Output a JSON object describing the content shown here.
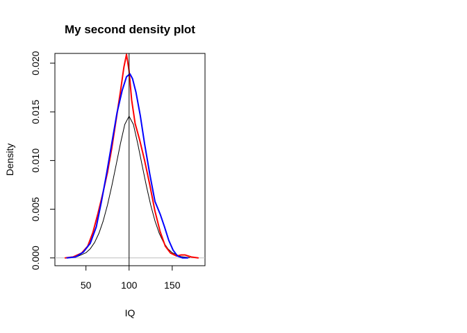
{
  "chart_data": {
    "type": "line",
    "title": "My second density plot",
    "xlabel": "IQ",
    "ylabel": "Density",
    "xlim": [
      14,
      188
    ],
    "ylim": [
      -0.0008,
      0.021
    ],
    "xticks": [
      50,
      100,
      150
    ],
    "xtick_labels": [
      "50",
      "100",
      "150"
    ],
    "yticks": [
      0.0,
      0.005,
      0.01,
      0.015,
      0.02
    ],
    "ytick_labels": [
      "0.000",
      "0.005",
      "0.010",
      "0.015",
      "0.020"
    ],
    "reference_lines": {
      "vertical_x": 100,
      "horizontal_y": 0
    },
    "grid": false,
    "legend": "none",
    "series": [
      {
        "color": "#000000",
        "x": [
          30,
          40,
          50,
          55,
          60,
          65,
          70,
          75,
          80,
          85,
          90,
          95,
          100,
          105,
          110,
          115,
          120,
          125,
          130,
          135,
          140,
          145,
          150,
          160,
          170
        ],
        "y": [
          3e-05,
          0.00014,
          0.00053,
          0.00094,
          0.00158,
          0.00252,
          0.0038,
          0.00545,
          0.00741,
          0.00956,
          0.01175,
          0.01371,
          0.01455,
          0.01371,
          0.01175,
          0.00956,
          0.00741,
          0.00545,
          0.0038,
          0.00252,
          0.00158,
          0.00094,
          0.00053,
          0.00014,
          3e-05
        ]
      },
      {
        "color": "#ff0000",
        "x": [
          26,
          35,
          45,
          52,
          58,
          64,
          70,
          75,
          80,
          85,
          90,
          94,
          97,
          100,
          103,
          107,
          112,
          118,
          124,
          130,
          136,
          142,
          148,
          155,
          160,
          165,
          172,
          180
        ],
        "y": [
          0.0,
          0.0001,
          0.0005,
          0.0012,
          0.0026,
          0.0046,
          0.0068,
          0.0088,
          0.0113,
          0.0142,
          0.0171,
          0.0196,
          0.0209,
          0.0192,
          0.0162,
          0.0138,
          0.0122,
          0.01,
          0.0075,
          0.0048,
          0.0027,
          0.0012,
          0.0005,
          0.0002,
          0.0003,
          0.0003,
          0.0001,
          0.0
        ]
      },
      {
        "color": "#0000ff",
        "x": [
          28,
          38,
          47,
          55,
          62,
          68,
          74,
          80,
          86,
          92,
          97,
          101,
          104,
          108,
          113,
          118,
          124,
          130,
          136,
          141,
          146,
          151,
          156,
          162,
          168
        ],
        "y": [
          0.0,
          0.0001,
          0.0006,
          0.0015,
          0.0032,
          0.0058,
          0.0087,
          0.0118,
          0.0149,
          0.0172,
          0.0186,
          0.0189,
          0.0184,
          0.017,
          0.0146,
          0.0117,
          0.0086,
          0.0058,
          0.0045,
          0.0032,
          0.0018,
          0.0008,
          0.0002,
          0.0,
          0.0
        ]
      }
    ]
  }
}
